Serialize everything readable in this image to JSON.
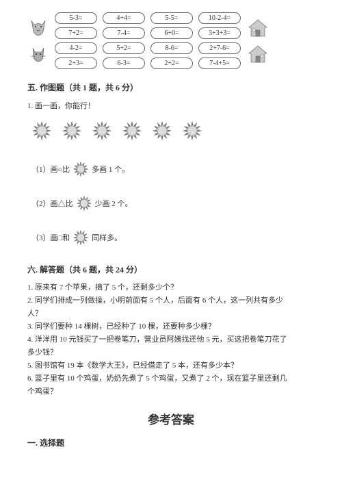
{
  "equations": {
    "rows": [
      [
        "5-3=",
        "4+4=",
        "5-5=",
        "10-2-4="
      ],
      [
        "7+2=",
        "7-4=",
        "6+0=",
        "3+3+3="
      ],
      [
        "4-2=",
        "5+2=",
        "8-6=",
        "2+7-6="
      ],
      [
        "2+3=",
        "6-3=",
        "2+2=",
        "7-4+5="
      ]
    ],
    "cell_border_color": "#666666",
    "cell_border_radius": 10,
    "font_size": 10
  },
  "section5": {
    "title": "五. 作图题（共 1 题，共 6 分）",
    "prompt": "1. 画一画，你能行！",
    "sun_count": 6,
    "subq1_pre": "（1）画○比",
    "subq1_post": "多画 1 个。",
    "subq2_pre": "（2）画△比",
    "subq2_post": "少画 2 个。",
    "subq3_pre": "（3）画□和",
    "subq3_post": "同样多。"
  },
  "section6": {
    "title": "六. 解答题（共 6 题，共 24 分）",
    "q1": "1. 原来有 7 个苹果，摘了 5 个，还剩多少个？",
    "q2a": "2. 同学们排成一列做操，小明前面有 5 个人，后面有 6 个人，这一列共有多少",
    "q2b": "人？",
    "q3": "3. 同学们要种 14 棵树，已经种了 10 棵，还要种多少棵？",
    "q4a": "4. 洋洋用 10 元钱买了一把卷笔刀，营业员阿姨找还他 5 元，买这把卷笔刀花了",
    "q4b": "多少钱？",
    "q5": "5. 图书馆有 19 本《数学大王》，已经借走了 5 本，还有多少本？",
    "q6a": "6. 篮子里有 10 个鸡蛋，奶奶先煮了 5 个鸡蛋，又煮了 2 个，现在篮子里还剩几",
    "q6b": "个鸡蛋？"
  },
  "answers": {
    "title": "参考答案",
    "sub1": "一. 选择题"
  },
  "colors": {
    "text": "#333333",
    "background": "#ffffff",
    "sun_fill": "#888888",
    "sun_stroke": "#555555",
    "icon_gray": "#999999"
  }
}
